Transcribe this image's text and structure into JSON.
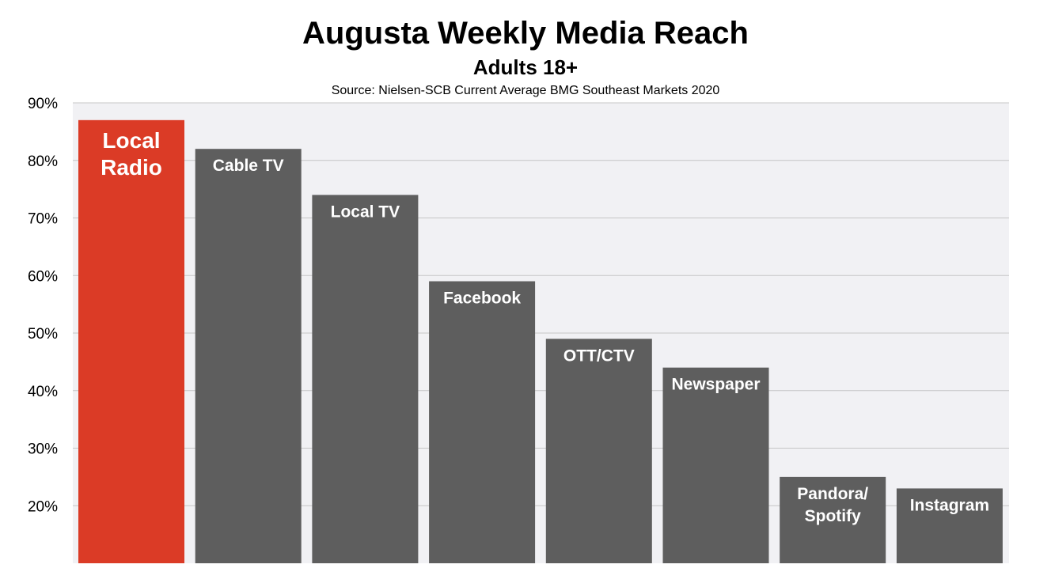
{
  "header": {
    "title": "Augusta Weekly Media Reach",
    "subtitle": "Adults 18+",
    "source": "Source: Nielsen-SCB  Current Average BMG Southeast Markets 2020"
  },
  "chart_data": {
    "type": "bar",
    "title": "Augusta Weekly Media Reach",
    "subtitle": "Adults 18+",
    "xlabel": "",
    "ylabel": "",
    "categories": [
      "Local Radio",
      "Cable TV",
      "Local TV",
      "Facebook",
      "OTT/CTV",
      "Newspaper",
      "Pandora/ Spotify",
      "Instagram"
    ],
    "category_label_lines": [
      [
        "Local",
        "Radio"
      ],
      [
        "Cable TV"
      ],
      [
        "Local TV"
      ],
      [
        "Facebook"
      ],
      [
        "OTT/CTV"
      ],
      [
        "Newspaper"
      ],
      [
        "Pandora/",
        "Spotify"
      ],
      [
        "Instagram"
      ]
    ],
    "values": [
      87,
      82,
      74,
      59,
      49,
      44,
      25,
      23
    ],
    "highlight_index": 0,
    "colors": {
      "highlight": "#db3b26",
      "bar": "#5e5e5e",
      "plot_background": "#f1f1f4",
      "gridline": "#c6c6c6"
    },
    "ylim": [
      10,
      90
    ],
    "yticks": [
      20,
      30,
      40,
      50,
      60,
      70,
      80,
      90
    ],
    "ytick_labels": [
      "20%",
      "30%",
      "40%",
      "50%",
      "60%",
      "70%",
      "80%",
      "90%"
    ],
    "grid": true,
    "legend": "none"
  }
}
